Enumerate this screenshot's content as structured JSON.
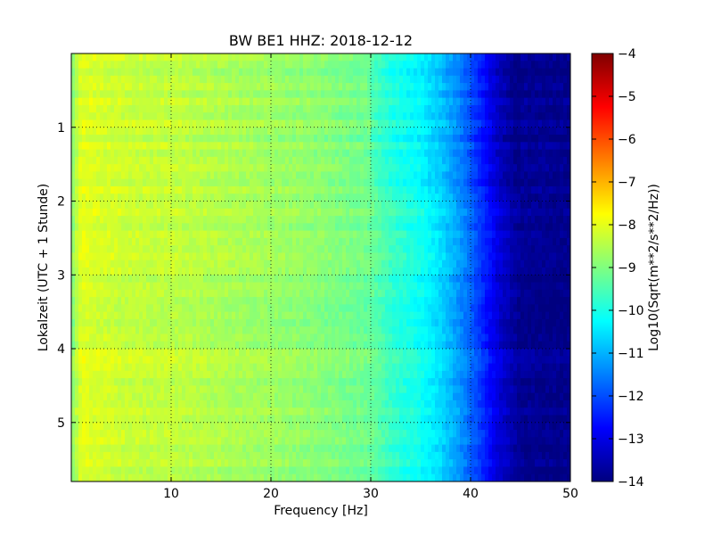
{
  "chart_data": {
    "type": "heatmap",
    "title": "BW BE1 HHZ: 2018-12-12",
    "xlabel": "Frequency [Hz]",
    "ylabel": "Lokalzeit (UTC + 1 Stunde)",
    "colorbar_label": "Log10(Sqrt(m**2/s**2/Hz))",
    "colormap": "jet",
    "xlim": [
      0,
      50
    ],
    "ylim": [
      0,
      5.8
    ],
    "y_inverted": true,
    "grid": true,
    "x_ticks": [
      10,
      20,
      30,
      40,
      50
    ],
    "x_tick_labels": [
      "10",
      "20",
      "30",
      "40",
      "50"
    ],
    "y_ticks": [
      1,
      2,
      3,
      4,
      5
    ],
    "y_tick_labels": [
      "1",
      "2",
      "3",
      "4",
      "5"
    ],
    "color_range": [
      -14,
      -4
    ],
    "colorbar_ticks": [
      -4,
      -5,
      -6,
      -7,
      -8,
      -9,
      -10,
      -11,
      -12,
      -13,
      -14
    ],
    "colorbar_tick_labels": [
      "−4",
      "−5",
      "−6",
      "−7",
      "−8",
      "−9",
      "−10",
      "−11",
      "−12",
      "−13",
      "−14"
    ],
    "frequency_profile": {
      "frequency_hz": [
        0,
        1,
        2,
        4,
        6,
        10,
        14,
        20,
        25,
        30,
        32,
        35,
        37,
        39,
        41,
        43,
        45,
        50
      ],
      "log10_amplitude": [
        -9.0,
        -8.0,
        -8.1,
        -8.2,
        -8.3,
        -8.35,
        -8.5,
        -8.7,
        -8.9,
        -9.2,
        -9.7,
        -10.1,
        -10.6,
        -11.3,
        -12.2,
        -13.2,
        -13.8,
        -13.9
      ]
    },
    "time_range_hours": [
      0,
      5.8
    ]
  }
}
